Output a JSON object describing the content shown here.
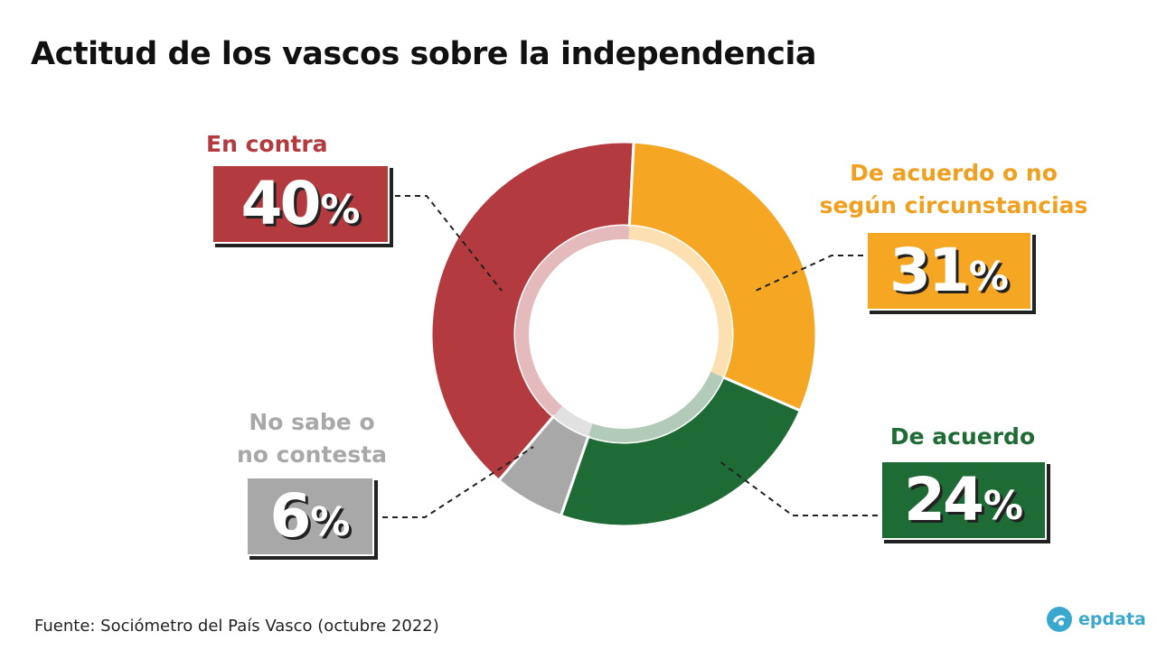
{
  "title": "Actitud de los vascos sobre la independencia",
  "source": "Fuente: Sociómetro del País Vasco (octubre 2022)",
  "logo": {
    "text": "epdata",
    "icon": "epdata-logo-icon",
    "color": "#3aa7cf"
  },
  "chart_data": {
    "type": "pie",
    "style": "donut",
    "title": "Actitud de los vascos sobre la independencia",
    "unit": "%",
    "slices": [
      {
        "label": "En contra",
        "value": 40,
        "color": "#b33a3e"
      },
      {
        "label": "De acuerdo o no según circunstancias",
        "label_lines": [
          "De acuerdo o no",
          "según circunstancias"
        ],
        "value": 31,
        "color": "#f5a623"
      },
      {
        "label": "De acuerdo",
        "value": 24,
        "color": "#1f6b35"
      },
      {
        "label": "No sabe o no contesta",
        "label_lines": [
          "No sabe o",
          "no contesta"
        ],
        "value": 6,
        "color": "#a8a8a8"
      }
    ],
    "label_colors": {
      "En contra": "#b33a3e",
      "De acuerdo o no según circunstancias": "#f0a020",
      "De acuerdo": "#1f6b35",
      "No sabe o no contesta": "#a8a8a8"
    }
  }
}
